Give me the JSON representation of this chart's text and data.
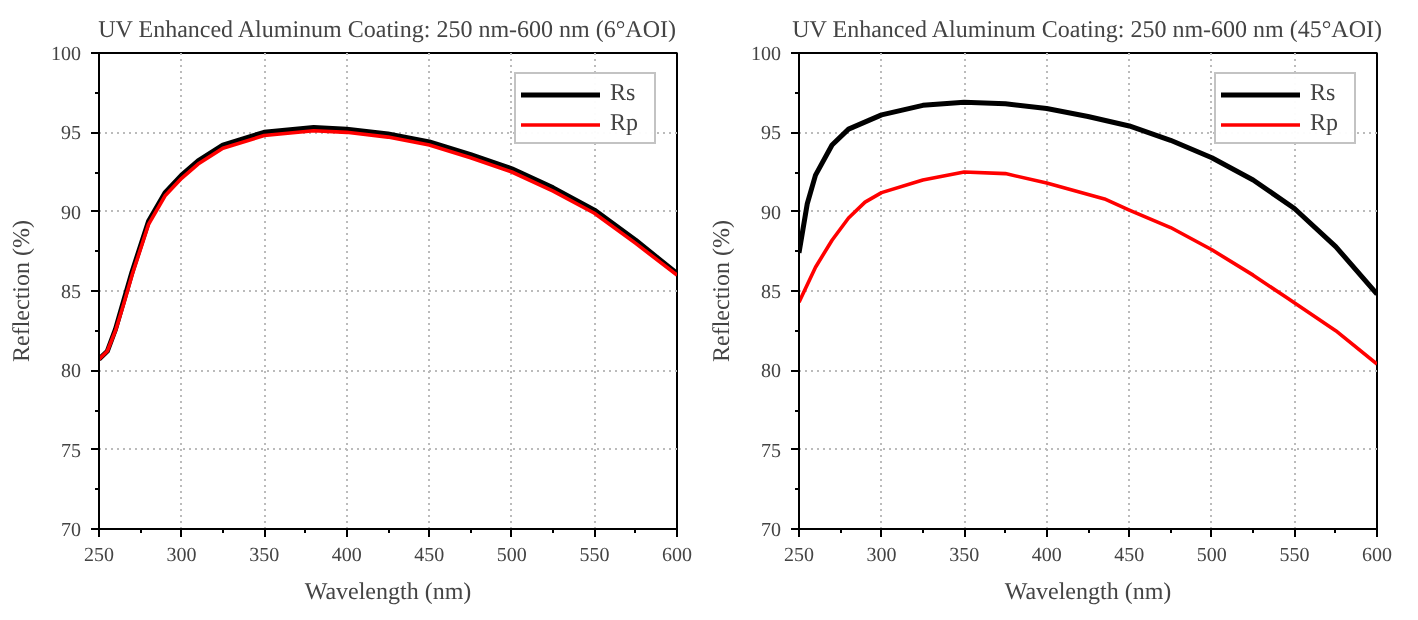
{
  "chart_data": [
    {
      "type": "line",
      "title": "UV Enhanced Aluminum Coating: 250 nm-600 nm (6°AOI)",
      "xlabel": "Wavelength (nm)",
      "ylabel": "Reflection (%)",
      "xlim": [
        250,
        600
      ],
      "ylim": [
        70,
        100
      ],
      "xticks": [
        250,
        300,
        350,
        400,
        450,
        500,
        550,
        600
      ],
      "yticks": [
        70,
        75,
        80,
        85,
        90,
        95,
        100
      ],
      "grid": true,
      "legend": "top right",
      "line_style": "solid",
      "x": [
        250,
        255,
        260,
        265,
        270,
        280,
        290,
        300,
        310,
        325,
        350,
        380,
        400,
        425,
        450,
        475,
        500,
        525,
        550,
        575,
        600
      ],
      "series": [
        {
          "name": "Rs",
          "color": "#000000",
          "values": [
            80.7,
            81.2,
            82.6,
            84.4,
            86.2,
            89.4,
            91.2,
            92.3,
            93.2,
            94.2,
            95.0,
            95.3,
            95.2,
            94.9,
            94.4,
            93.6,
            92.7,
            91.5,
            90.1,
            88.2,
            86.1
          ]
        },
        {
          "name": "Rp",
          "color": "#ff0000",
          "values": [
            80.7,
            81.2,
            82.5,
            84.2,
            86.0,
            89.2,
            91.0,
            92.1,
            93.0,
            94.0,
            94.8,
            95.1,
            95.0,
            94.7,
            94.2,
            93.4,
            92.5,
            91.3,
            89.9,
            88.0,
            86.0
          ]
        }
      ]
    },
    {
      "type": "line",
      "title": "UV Enhanced Aluminum Coating: 250 nm-600 nm (45°AOI)",
      "xlabel": "Wavelength (nm)",
      "ylabel": "Reflection (%)",
      "xlim": [
        250,
        600
      ],
      "ylim": [
        70,
        100
      ],
      "xticks": [
        250,
        300,
        350,
        400,
        450,
        500,
        550,
        600
      ],
      "yticks": [
        70,
        75,
        80,
        85,
        90,
        95,
        100
      ],
      "grid": true,
      "legend": "top right",
      "line_style": "solid",
      "series": [
        {
          "name": "Rs",
          "color": "#000000",
          "x": [
            250,
            255,
            260,
            270,
            280,
            300,
            325,
            350,
            375,
            400,
            425,
            450,
            475,
            500,
            525,
            550,
            575,
            600
          ],
          "values": [
            87.4,
            90.5,
            92.3,
            94.2,
            95.2,
            96.1,
            96.7,
            96.9,
            96.8,
            96.5,
            96.0,
            95.4,
            94.5,
            93.4,
            92.0,
            90.2,
            87.8,
            84.8
          ]
        },
        {
          "name": "Rp",
          "color": "#ff0000",
          "x": [
            250,
            260,
            270,
            280,
            290,
            300,
            325,
            350,
            375,
            400,
            435,
            450,
            475,
            500,
            525,
            545,
            575,
            600
          ],
          "values": [
            84.3,
            86.5,
            88.2,
            89.6,
            90.6,
            91.2,
            92.0,
            92.5,
            92.4,
            91.8,
            90.8,
            90.1,
            89.0,
            87.6,
            86.0,
            84.6,
            82.5,
            80.4
          ]
        }
      ]
    }
  ]
}
